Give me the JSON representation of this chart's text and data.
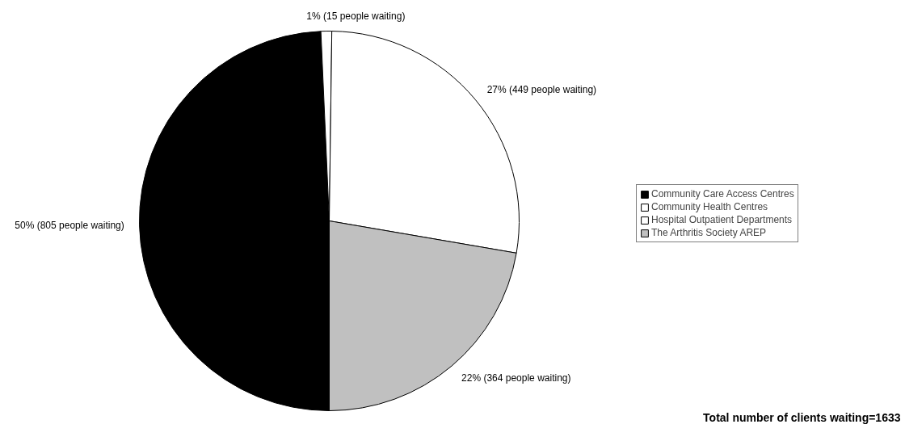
{
  "chart_data": {
    "type": "pie",
    "categories": [
      "Community Care Access Centres",
      "Community Health Centres",
      "Hospital Outpatient Departments",
      "The Arthritis Society AREP"
    ],
    "values": [
      805,
      15,
      449,
      364
    ],
    "colors": [
      "#000000",
      "#ffffff",
      "#ffffff",
      "#c0c0c0"
    ],
    "value_labels": [
      "50% (805 people waiting)",
      "1%   (15 people waiting)",
      "27%   (449 people waiting)",
      "22% (364 people waiting)"
    ],
    "legend": "right",
    "annotations": [
      "Total number of clients waiting=1633"
    ]
  }
}
